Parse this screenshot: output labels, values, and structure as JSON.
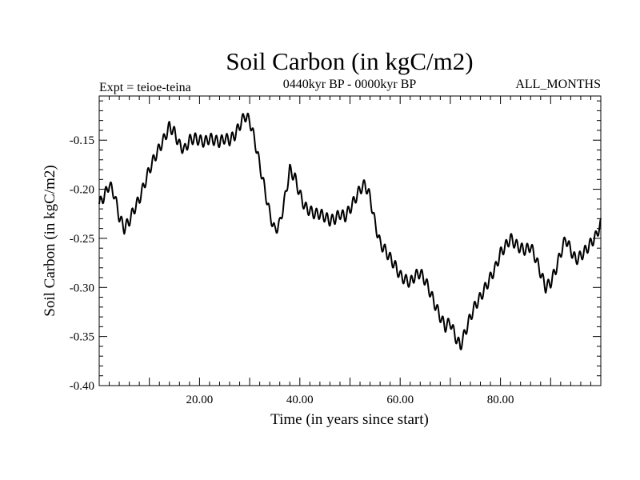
{
  "chart_data": {
    "type": "line",
    "title": "Soil Carbon (in kgC/m2)",
    "subtitle_left": "Expt = teioe-teina",
    "subtitle_center": "0440kyr BP - 0000kyr BP",
    "subtitle_right": "ALL_MONTHS",
    "xlabel": "Time (in years since start)",
    "ylabel": "Soil Carbon (in kgC/m2)",
    "xlim": [
      0,
      100
    ],
    "ylim": [
      -0.4,
      -0.105
    ],
    "x_ticks": [
      20,
      40,
      60,
      80
    ],
    "x_tick_labels": [
      "20.00",
      "40.00",
      "60.00",
      "80.00"
    ],
    "y_ticks": [
      -0.4,
      -0.35,
      -0.3,
      -0.25,
      -0.2,
      -0.15
    ],
    "y_tick_labels": [
      "-0.40",
      "-0.35",
      "-0.30",
      "-0.25",
      "-0.20",
      "-0.15"
    ],
    "grid": false,
    "series": [
      {
        "name": "Soil Carbon",
        "color": "#000000",
        "x": [
          0,
          1,
          2,
          3,
          4,
          5,
          6,
          7,
          8,
          9,
          10,
          11,
          12,
          13,
          14,
          15,
          16,
          17,
          18,
          19,
          20,
          21,
          22,
          23,
          24,
          25,
          26,
          27,
          28,
          29,
          30,
          31,
          32,
          33,
          34,
          35,
          36,
          37,
          38,
          39,
          40,
          41,
          42,
          43,
          44,
          45,
          46,
          47,
          48,
          49,
          50,
          51,
          52,
          53,
          54,
          55,
          56,
          57,
          58,
          59,
          60,
          61,
          62,
          63,
          64,
          65,
          66,
          67,
          68,
          69,
          70,
          71,
          72,
          73,
          74,
          75,
          76,
          77,
          78,
          79,
          80,
          81,
          82,
          83,
          84,
          85,
          86,
          87,
          88,
          89,
          90,
          91,
          92,
          93,
          94,
          95,
          96,
          97,
          98,
          99,
          100
        ],
        "values": [
          -0.215,
          -0.207,
          -0.195,
          -0.205,
          -0.228,
          -0.24,
          -0.232,
          -0.22,
          -0.21,
          -0.195,
          -0.18,
          -0.168,
          -0.158,
          -0.148,
          -0.136,
          -0.142,
          -0.155,
          -0.16,
          -0.15,
          -0.148,
          -0.15,
          -0.152,
          -0.148,
          -0.15,
          -0.152,
          -0.148,
          -0.15,
          -0.145,
          -0.135,
          -0.125,
          -0.13,
          -0.15,
          -0.175,
          -0.2,
          -0.225,
          -0.242,
          -0.235,
          -0.21,
          -0.18,
          -0.188,
          -0.205,
          -0.218,
          -0.222,
          -0.225,
          -0.225,
          -0.228,
          -0.232,
          -0.23,
          -0.225,
          -0.228,
          -0.22,
          -0.21,
          -0.2,
          -0.195,
          -0.208,
          -0.235,
          -0.255,
          -0.262,
          -0.27,
          -0.278,
          -0.288,
          -0.292,
          -0.295,
          -0.288,
          -0.285,
          -0.293,
          -0.305,
          -0.318,
          -0.33,
          -0.34,
          -0.335,
          -0.35,
          -0.36,
          -0.345,
          -0.33,
          -0.318,
          -0.31,
          -0.3,
          -0.29,
          -0.28,
          -0.265,
          -0.258,
          -0.25,
          -0.256,
          -0.26,
          -0.262,
          -0.258,
          -0.27,
          -0.285,
          -0.3,
          -0.295,
          -0.282,
          -0.265,
          -0.25,
          -0.262,
          -0.272,
          -0.268,
          -0.262,
          -0.255,
          -0.248,
          -0.235
        ]
      }
    ]
  }
}
